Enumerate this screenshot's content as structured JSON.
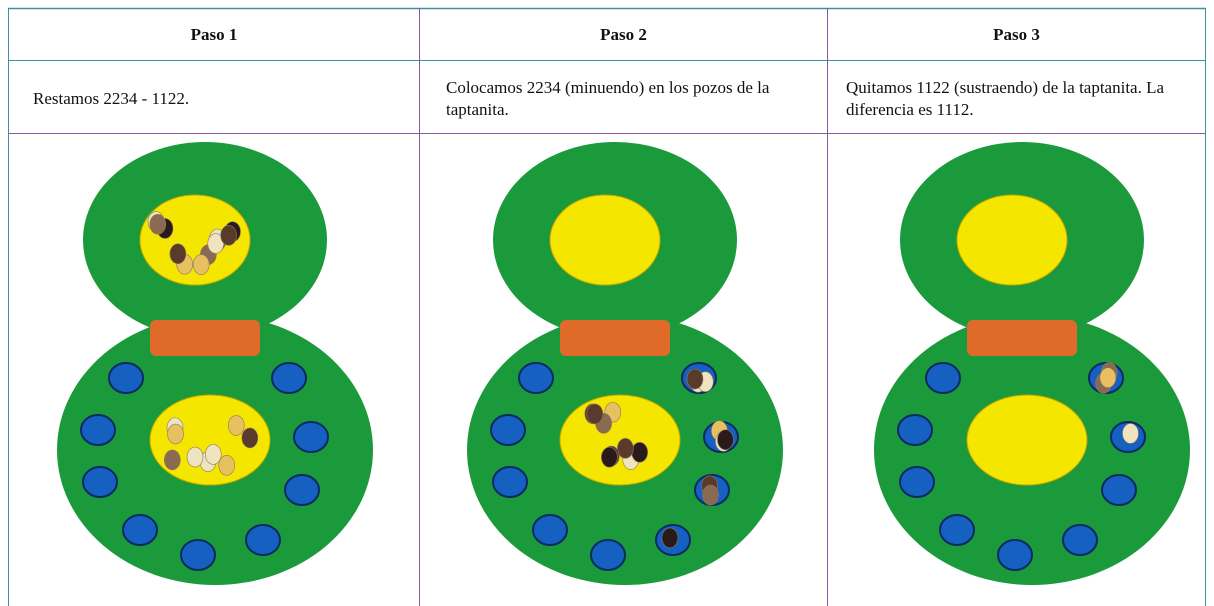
{
  "table": {
    "header": [
      "Paso 1",
      "Paso 2",
      "Paso 3"
    ],
    "rows": [
      [
        "Restamos 2234 - 1122.",
        "Colocamos 2234 (minuendo) en los pozos de la taptanita.",
        "Quitamos 1122 (sustraendo) de la taptanita. La diferencia es 1112."
      ]
    ]
  }
}
